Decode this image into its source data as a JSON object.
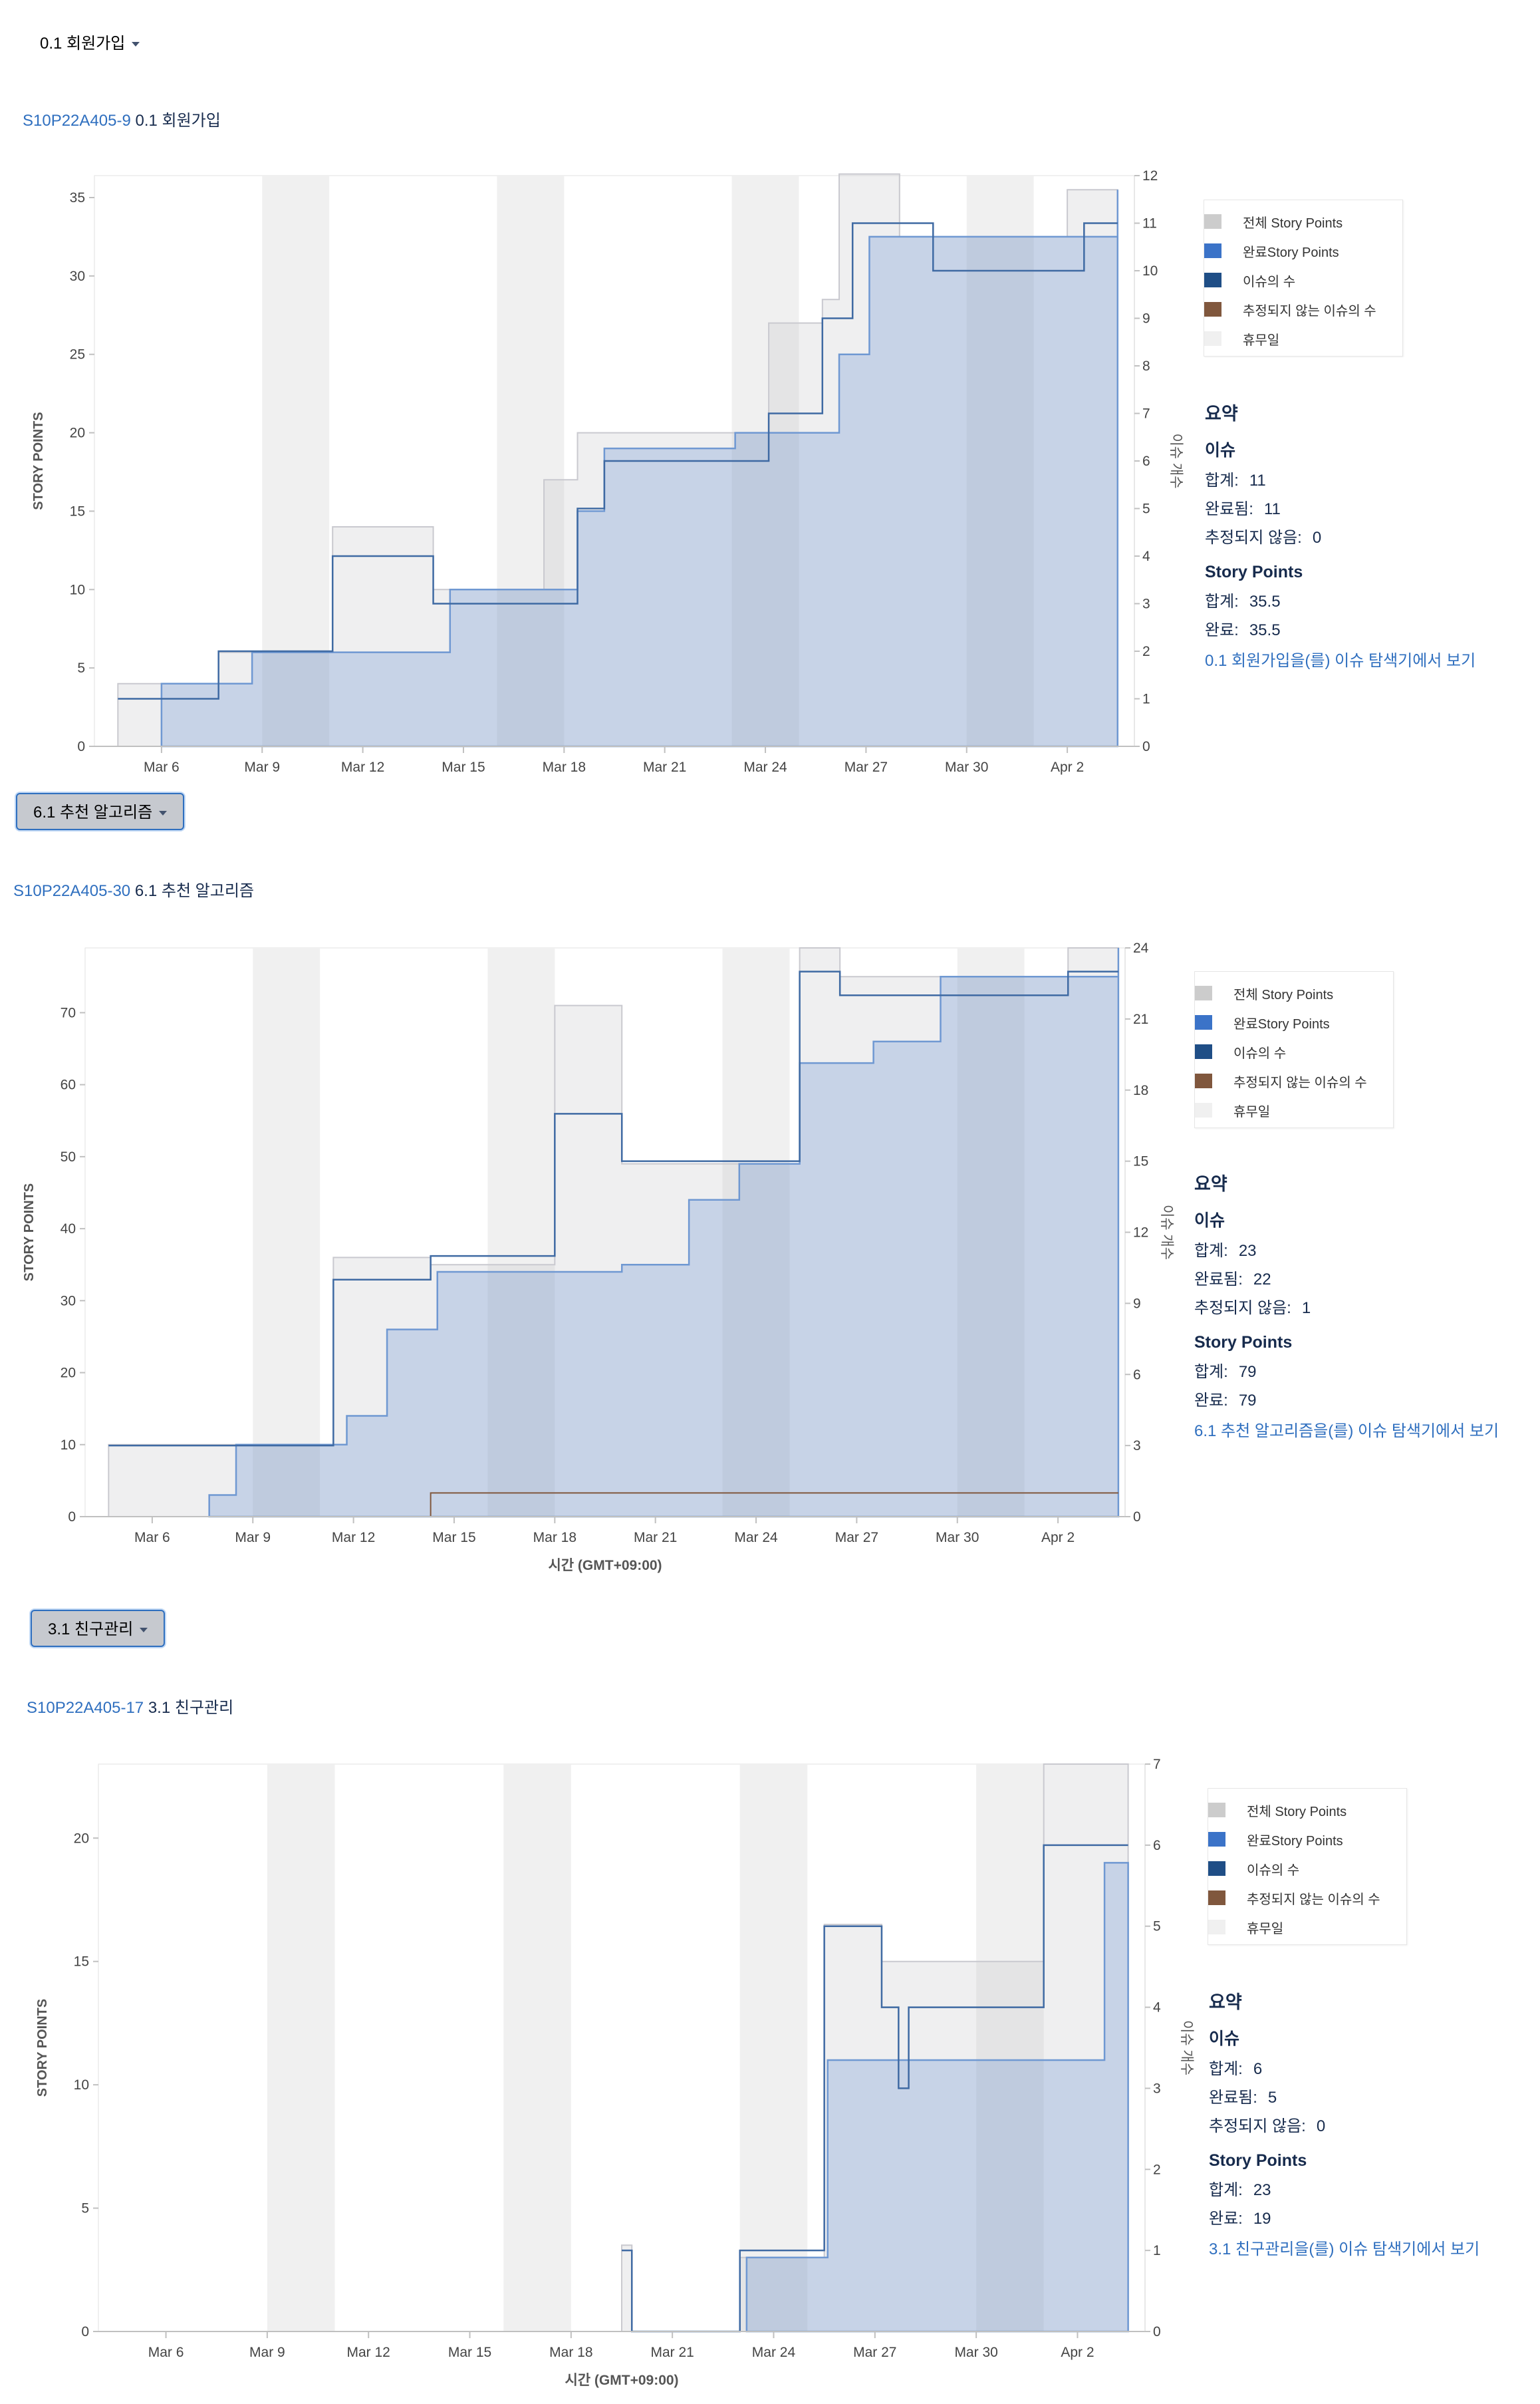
{
  "legend": {
    "total": "전체 Story Points",
    "done": "완료Story Points",
    "issues": "이슈의 수",
    "unestimated": "추정되지 않는 이슈의 수",
    "nonworking": "휴무일"
  },
  "colors": {
    "total": "#cccccc",
    "done": "#3b73c8",
    "issues": "#1f4e86",
    "unestimated": "#80573d",
    "nonworking": "#f0f0f0"
  },
  "axis": {
    "left_label": "STORY POINTS",
    "right_label": "이슈 개수",
    "x_label": "시간 (GMT+09:00)"
  },
  "summary_labels": {
    "title": "요약",
    "issues": "이슈",
    "total": "합계:",
    "done_issues": "완료됨:",
    "unestimated": "추정되지 않음:",
    "story_points": "Story Points",
    "done_points": "완료:"
  },
  "epics": [
    {
      "button": "0.1 회원가입",
      "key": "S10P22A405-9",
      "name": "0.1 회원가입",
      "summary": {
        "total_issues": "11",
        "done_issues": "11",
        "unestimated": "0",
        "total_points": "35.5",
        "done_points": "35.5"
      },
      "link": "0.1 회원가입을(를) 이슈 탐색기에서 보기",
      "chart_data": {
        "type": "area",
        "x_ticks": [
          "Mar 6",
          "Mar 9",
          "Mar 12",
          "Mar 15",
          "Mar 18",
          "Mar 21",
          "Mar 24",
          "Mar 27",
          "Mar 30",
          "Apr 2"
        ],
        "x_range": [
          "Mar 4",
          "Apr 4"
        ],
        "ylim": [
          0,
          36.4
        ],
        "y_ticks": [
          0,
          5,
          10,
          15,
          20,
          25,
          30,
          35
        ],
        "y2lim": [
          0,
          12
        ],
        "y2_ticks": [
          0,
          1,
          2,
          3,
          4,
          5,
          6,
          7,
          8,
          9,
          10,
          11,
          12
        ],
        "xlabel": "",
        "nonworking_days": [
          [
            "Mar 9",
            "Mar 11"
          ],
          [
            "Mar 16",
            "Mar 18"
          ],
          [
            "Mar 23",
            "Mar 25"
          ],
          [
            "Mar 30",
            "Apr 1"
          ]
        ],
        "series": [
          {
            "name": "전체 Story Points",
            "step": [
              [
                "Mar 4.7",
                4
              ],
              [
                "Mar 6",
                4
              ],
              [
                "Mar 7.7",
                6
              ],
              [
                "Mar 8.7",
                6
              ],
              [
                "Mar 11.1",
                14
              ],
              [
                "Mar 14.1",
                10
              ],
              [
                "Mar 17.4",
                17
              ],
              [
                "Mar 18.4",
                20
              ],
              [
                "Mar 24.1",
                27
              ],
              [
                "Mar 25.7",
                28.5
              ],
              [
                "Mar 26.2",
                36.5
              ],
              [
                "Mar 28",
                32.5
              ],
              [
                "Apr 2",
                35.5
              ],
              [
                "Apr 3.5",
                35.5
              ]
            ]
          },
          {
            "name": "완료Story Points",
            "step": [
              [
                "Mar 6",
                0
              ],
              [
                "Mar 6",
                4
              ],
              [
                "Mar 8.7",
                6
              ],
              [
                "Mar 14.6",
                10
              ],
              [
                "Mar 18.4",
                15
              ],
              [
                "Mar 19.2",
                19
              ],
              [
                "Mar 23.1",
                20
              ],
              [
                "Mar 26.2",
                25
              ],
              [
                "Mar 27.1",
                32.5
              ],
              [
                "Apr 3.5",
                35.5
              ]
            ]
          },
          {
            "name": "이슈의 수",
            "step": [
              [
                "Mar 4.7",
                1
              ],
              [
                "Mar 6.5",
                1
              ],
              [
                "Mar 7.7",
                2
              ],
              [
                "Mar 11.1",
                4
              ],
              [
                "Mar 14.1",
                3
              ],
              [
                "Mar 18.4",
                5
              ],
              [
                "Mar 19.2",
                6
              ],
              [
                "Mar 24.1",
                7
              ],
              [
                "Mar 25.7",
                9
              ],
              [
                "Mar 26.6",
                11
              ],
              [
                "Mar 29",
                10
              ],
              [
                "Apr 2.5",
                11
              ],
              [
                "Apr 3.5",
                11
              ]
            ]
          },
          {
            "name": "추정되지 않는 이슈의 수",
            "step": [
              [
                "Mar 4.7",
                0
              ],
              [
                "Apr 3.5",
                0
              ]
            ]
          }
        ]
      }
    },
    {
      "button": "6.1 추천 알고리즘",
      "key": "S10P22A405-30",
      "name": "6.1 추천 알고리즘",
      "summary": {
        "total_issues": "23",
        "done_issues": "22",
        "unestimated": "1",
        "total_points": "79",
        "done_points": "79"
      },
      "link": "6.1 추천 알고리즘을(를) 이슈 탐색기에서 보기",
      "chart_data": {
        "type": "area",
        "x_ticks": [
          "Mar 6",
          "Mar 9",
          "Mar 12",
          "Mar 15",
          "Mar 18",
          "Mar 21",
          "Mar 24",
          "Mar 27",
          "Mar 30",
          "Apr 2"
        ],
        "x_range": [
          "Mar 4",
          "Apr 4"
        ],
        "ylim": [
          0,
          79
        ],
        "y_ticks": [
          0,
          10,
          20,
          30,
          40,
          50,
          60,
          70
        ],
        "y2lim": [
          0,
          24
        ],
        "y2_ticks": [
          0,
          3,
          6,
          9,
          12,
          15,
          18,
          21,
          24
        ],
        "xlabel": "시간 (GMT+09:00)",
        "nonworking_days": [
          [
            "Mar 9",
            "Mar 11"
          ],
          [
            "Mar 16",
            "Mar 18"
          ],
          [
            "Mar 23",
            "Mar 25"
          ],
          [
            "Mar 30",
            "Apr 1"
          ]
        ],
        "series": [
          {
            "name": "전체 Story Points",
            "step": [
              [
                "Mar 4.7",
                10
              ],
              [
                "Mar 11.4",
                36
              ],
              [
                "Mar 14.3",
                35
              ],
              [
                "Mar 18",
                71
              ],
              [
                "Mar 20",
                49
              ],
              [
                "Mar 25.3",
                79
              ],
              [
                "Mar 26.5",
                75
              ],
              [
                "Apr 2.3",
                79
              ],
              [
                "Apr 3.8",
                79
              ]
            ]
          },
          {
            "name": "완료Story Points",
            "step": [
              [
                "Mar 7.7",
                0
              ],
              [
                "Mar 7.7",
                3
              ],
              [
                "Mar 8.5",
                10
              ],
              [
                "Mar 11.8",
                14
              ],
              [
                "Mar 13",
                26
              ],
              [
                "Mar 14.5",
                34
              ],
              [
                "Mar 20",
                35
              ],
              [
                "Mar 22",
                44
              ],
              [
                "Mar 23.5",
                49
              ],
              [
                "Mar 25.3",
                63
              ],
              [
                "Mar 27.5",
                66
              ],
              [
                "Mar 29.5",
                75
              ],
              [
                "Apr 3.8",
                79
              ]
            ]
          },
          {
            "name": "이슈의 수",
            "step": [
              [
                "Mar 4.7",
                3
              ],
              [
                "Mar 11.4",
                10
              ],
              [
                "Mar 14.3",
                11
              ],
              [
                "Mar 18",
                17
              ],
              [
                "Mar 20",
                15
              ],
              [
                "Mar 25.3",
                23
              ],
              [
                "Mar 26.5",
                22
              ],
              [
                "Apr 2.3",
                23
              ],
              [
                "Apr 3.8",
                23
              ]
            ]
          },
          {
            "name": "추정되지 않는 이슈의 수",
            "step": [
              [
                "Mar 11.4",
                0
              ],
              [
                "Mar 14.3",
                1
              ],
              [
                "Apr 3.8",
                1
              ]
            ]
          }
        ]
      }
    },
    {
      "button": "3.1 친구관리",
      "key": "S10P22A405-17",
      "name": "3.1 친구관리",
      "summary": {
        "total_issues": "6",
        "done_issues": "5",
        "unestimated": "0",
        "total_points": "23",
        "done_points": "19"
      },
      "link": "3.1 친구관리을(를) 이슈 탐색기에서 보기",
      "chart_data": {
        "type": "area",
        "x_ticks": [
          "Mar 6",
          "Mar 9",
          "Mar 12",
          "Mar 15",
          "Mar 18",
          "Mar 21",
          "Mar 24",
          "Mar 27",
          "Mar 30",
          "Apr 2"
        ],
        "x_range": [
          "Mar 4",
          "Apr 4"
        ],
        "ylim": [
          0,
          23
        ],
        "y_ticks": [
          0,
          5,
          10,
          15,
          20
        ],
        "y2lim": [
          0,
          7
        ],
        "y2_ticks": [
          0,
          1,
          2,
          3,
          4,
          5,
          6,
          7
        ],
        "xlabel": "시간 (GMT+09:00)",
        "nonworking_days": [
          [
            "Mar 9",
            "Mar 11"
          ],
          [
            "Mar 16",
            "Mar 18"
          ],
          [
            "Mar 23",
            "Mar 25"
          ],
          [
            "Mar 30",
            "Apr 1"
          ]
        ],
        "series": [
          {
            "name": "전체 Story Points",
            "step": [
              [
                "Mar 19.5",
                3.5
              ],
              [
                "Mar 19.8",
                0
              ],
              [
                "Mar 23",
                3
              ],
              [
                "Mar 25.5",
                16.5
              ],
              [
                "Mar 27.2",
                15
              ],
              [
                "Mar 27.9",
                15
              ],
              [
                "Apr 1",
                23
              ],
              [
                "Apr 3.5",
                23
              ]
            ]
          },
          {
            "name": "완료Story Points",
            "step": [
              [
                "Mar 23.2",
                0
              ],
              [
                "Mar 23.2",
                3
              ],
              [
                "Mar 25.6",
                11
              ],
              [
                "Apr 2.8",
                19
              ],
              [
                "Apr 3.5",
                19
              ]
            ]
          },
          {
            "name": "이슈의 수",
            "step": [
              [
                "Mar 19.5",
                1
              ],
              [
                "Mar 19.8",
                0
              ],
              [
                "Mar 23",
                1
              ],
              [
                "Mar 25.5",
                5
              ],
              [
                "Mar 27.2",
                4
              ],
              [
                "Mar 27.7",
                3
              ],
              [
                "Mar 28",
                4
              ],
              [
                "Apr 1",
                6
              ],
              [
                "Apr 3.5",
                6
              ]
            ]
          },
          {
            "name": "추정되지 않는 이슈의 수",
            "step": [
              [
                "Mar 19.5",
                0
              ],
              [
                "Apr 3.5",
                0
              ]
            ]
          }
        ]
      }
    }
  ]
}
